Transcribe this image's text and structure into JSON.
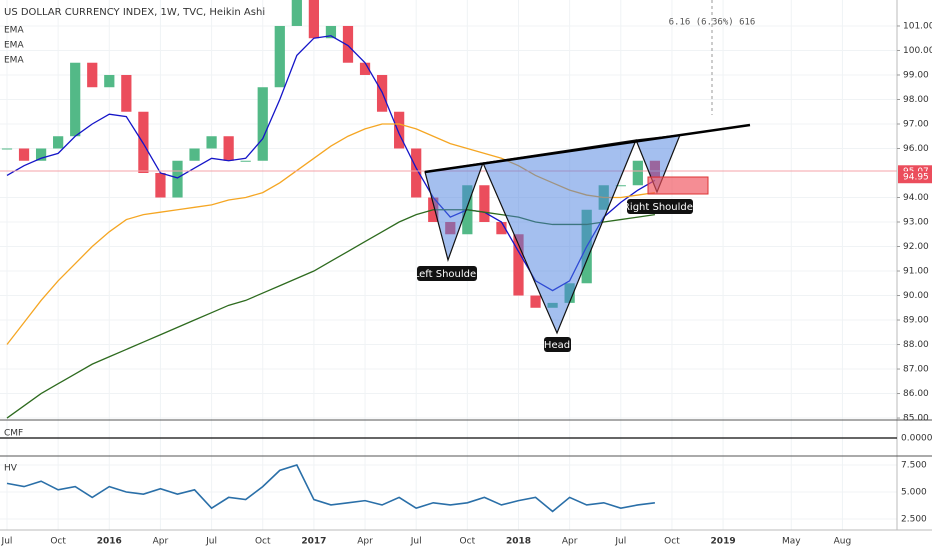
{
  "chart_data": {
    "type": "candlestick",
    "title": "US DOLLAR CURRENCY INDEX, 1W, TVC, Heikin Ashi",
    "x": [
      0,
      1,
      2,
      3,
      4,
      5,
      6,
      7,
      8,
      9,
      10,
      11,
      12,
      13,
      14,
      15,
      16,
      17,
      18,
      19,
      20,
      21,
      22,
      23,
      24,
      25,
      26,
      27,
      28,
      29,
      30,
      31,
      32,
      33,
      34,
      35,
      36,
      37,
      38
    ],
    "close": [
      96.0,
      95.5,
      96.0,
      96.5,
      99.5,
      98.5,
      99.0,
      97.5,
      95.0,
      94.0,
      95.5,
      96.0,
      96.5,
      95.5,
      95.5,
      98.5,
      101.0,
      102.5,
      100.5,
      101.0,
      99.5,
      99.0,
      97.5,
      96.0,
      94.0,
      93.0,
      92.5,
      94.5,
      93.0,
      92.5,
      90.0,
      89.5,
      89.7,
      90.5,
      93.5,
      94.5,
      94.5,
      95.5,
      94.8
    ],
    "up_color": "#53b987",
    "down_color": "#eb4d5c",
    "series": [
      {
        "name": "EMA",
        "color": "#1515c8",
        "values": [
          94.9,
          95.3,
          95.6,
          95.8,
          96.5,
          97.0,
          97.4,
          97.3,
          96.2,
          95.0,
          94.8,
          95.2,
          95.6,
          95.5,
          95.6,
          96.4,
          98.0,
          99.8,
          100.5,
          100.6,
          100.2,
          99.5,
          98.3,
          96.6,
          95.2,
          94.0,
          93.2,
          93.5,
          93.4,
          93.0,
          91.8,
          90.6,
          90.2,
          90.6,
          92.0,
          93.2,
          93.8,
          94.3,
          94.7
        ]
      },
      {
        "name": "EMA",
        "color": "#f5a623",
        "values": [
          88.0,
          88.9,
          89.8,
          90.6,
          91.3,
          92.0,
          92.6,
          93.1,
          93.3,
          93.4,
          93.5,
          93.6,
          93.7,
          93.9,
          94.0,
          94.2,
          94.6,
          95.1,
          95.6,
          96.1,
          96.5,
          96.8,
          97.0,
          97.0,
          96.8,
          96.5,
          96.2,
          96.0,
          95.8,
          95.6,
          95.3,
          94.9,
          94.6,
          94.3,
          94.1,
          94.0,
          94.0,
          94.1,
          94.2
        ]
      },
      {
        "name": "EMA",
        "color": "#2e6b1f",
        "values": [
          85.0,
          85.5,
          86.0,
          86.4,
          86.8,
          87.2,
          87.5,
          87.8,
          88.1,
          88.4,
          88.7,
          89.0,
          89.3,
          89.6,
          89.8,
          90.1,
          90.4,
          90.7,
          91.0,
          91.4,
          91.8,
          92.2,
          92.6,
          93.0,
          93.3,
          93.5,
          93.5,
          93.5,
          93.4,
          93.3,
          93.2,
          93.0,
          92.9,
          92.9,
          92.9,
          93.0,
          93.1,
          93.2,
          93.3
        ]
      }
    ],
    "xlim": [
      -0.41,
      52.2
    ],
    "ylim": [
      84.92,
      102.06
    ],
    "xticks": [
      {
        "value": 0,
        "label": "Jul"
      },
      {
        "value": 3,
        "label": "Oct"
      },
      {
        "value": 6,
        "label": "2016"
      },
      {
        "value": 9,
        "label": "Apr"
      },
      {
        "value": 12,
        "label": "Jul"
      },
      {
        "value": 15,
        "label": "Oct"
      },
      {
        "value": 18,
        "label": "2017"
      },
      {
        "value": 21,
        "label": "Apr"
      },
      {
        "value": 24,
        "label": "Jul"
      },
      {
        "value": 27,
        "label": "Oct"
      },
      {
        "value": 30,
        "label": "2018"
      },
      {
        "value": 33,
        "label": "Apr"
      },
      {
        "value": 36,
        "label": "Jul"
      },
      {
        "value": 39,
        "label": "Oct"
      },
      {
        "value": 42,
        "label": "2019"
      },
      {
        "value": 46,
        "label": "May"
      },
      {
        "value": 49,
        "label": "Aug"
      }
    ],
    "yticks": [
      {
        "value": 85,
        "label": "85.00"
      },
      {
        "value": 86,
        "label": "86.00"
      },
      {
        "value": 87,
        "label": "87.00"
      },
      {
        "value": 88,
        "label": "88.00"
      },
      {
        "value": 89,
        "label": "89.00"
      },
      {
        "value": 90,
        "label": "90.00"
      },
      {
        "value": 91,
        "label": "91.00"
      },
      {
        "value": 92,
        "label": "92.00"
      },
      {
        "value": 93,
        "label": "93.00"
      },
      {
        "value": 94,
        "label": "94.00"
      },
      {
        "value": 96,
        "label": "96.00"
      },
      {
        "value": 97,
        "label": "97.00"
      },
      {
        "value": 98,
        "label": "98.00"
      },
      {
        "value": 99,
        "label": "99.00"
      },
      {
        "value": 100,
        "label": "100.00"
      },
      {
        "value": 101,
        "label": "101.00"
      }
    ],
    "price_tags": [
      95.07,
      94.95
    ],
    "annotations": [
      "Left Shoulder",
      "Head",
      "Right Shoulder"
    ],
    "measure": "6.16 (6.36%) 616",
    "cmf": {
      "name": "CMF",
      "ylim": [
        -1,
        1
      ],
      "yticks": [
        {
          "value": 0,
          "label": "0.0000"
        }
      ]
    },
    "hv": {
      "name": "HV",
      "color": "#2a6fa8",
      "values": [
        5.8,
        5.5,
        6.0,
        5.2,
        5.5,
        4.5,
        5.5,
        5.0,
        4.8,
        5.3,
        4.8,
        5.2,
        3.5,
        4.5,
        4.3,
        5.5,
        7.0,
        7.5,
        4.3,
        3.8,
        4.0,
        4.2,
        3.8,
        4.5,
        3.5,
        4.0,
        3.8,
        4.0,
        4.5,
        3.8,
        4.2,
        4.5,
        3.2,
        4.5,
        3.8,
        4.0,
        3.5,
        3.8,
        4.0
      ],
      "ylim": [
        1.48,
        8.24
      ],
      "yticks": [
        {
          "value": 2.5,
          "label": "2.500"
        },
        {
          "value": 5,
          "label": "5.000"
        },
        {
          "value": 7.5,
          "label": "7.500"
        }
      ]
    }
  }
}
